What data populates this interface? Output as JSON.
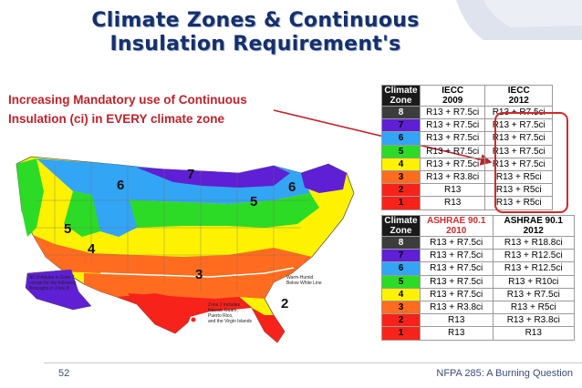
{
  "title": {
    "line1": "Climate Zones & Continuous",
    "line2": "Insulation Requirement's"
  },
  "subtitle": {
    "line1": "Increasing Mandatory use of Continuous",
    "line2": "Insulation (ci) in EVERY climate zone"
  },
  "zone_colors": [
    "#f7231b",
    "#ff6c1f",
    "#fff200",
    "#2cdb26",
    "#33c9f5",
    "#5f1fd4",
    "#0b1f6f",
    "#3d3c3c"
  ],
  "table1": {
    "headers": [
      "Climate\nZone",
      "IECC\n2009",
      "IECC\n2012"
    ],
    "rows": [
      {
        "zone": "8",
        "a": "R13 + R7.5ci",
        "b": "R13 + R7.5ci",
        "color": "#3d3c3c",
        "textcolor": "#ffffff"
      },
      {
        "zone": "7",
        "a": "R13 + R7.5ci",
        "b": "R13 + R7.5ci",
        "color": "#5f1fd4",
        "textcolor": "#000000"
      },
      {
        "zone": "6",
        "a": "R13 + R7.5ci",
        "b": "R13 + R7.5ci",
        "color": "#33a5f5",
        "textcolor": "#000000"
      },
      {
        "zone": "5",
        "a": "R13 + R7.5ci",
        "b": "R13 + R7.5ci",
        "color": "#2cdb26",
        "textcolor": "#000000"
      },
      {
        "zone": "4",
        "a": "R13 + R7.5ci",
        "b": "R13 + R7.5ci",
        "color": "#fff200",
        "textcolor": "#000000"
      },
      {
        "zone": "3",
        "a": "R13 + R3.8ci",
        "b": "R13 + R5ci",
        "color": "#ff6c1f",
        "textcolor": "#000000"
      },
      {
        "zone": "2",
        "a": "R13",
        "b": "R13 + R5ci",
        "color": "#f7231b",
        "textcolor": "#000000"
      },
      {
        "zone": "1",
        "a": "R13",
        "b": "R13 + R5ci",
        "color": "#f7231b",
        "textcolor": "#000000"
      }
    ]
  },
  "table2": {
    "headers": [
      "Climate\nZone",
      "ASHRAE 90.1\n2010",
      "ASHRAE 90.1\n2012"
    ],
    "rows": [
      {
        "zone": "8",
        "a": "R13 + R7.5ci",
        "b": "R13 + R18.8ci",
        "color": "#3d3c3c",
        "textcolor": "#ffffff"
      },
      {
        "zone": "7",
        "a": "R13 + R7.5ci",
        "b": "R13 + R12.5ci",
        "color": "#5f1fd4",
        "textcolor": "#000000"
      },
      {
        "zone": "6",
        "a": "R13 + R7.5ci",
        "b": "R13 + R12.5ci",
        "color": "#33a5f5",
        "textcolor": "#000000"
      },
      {
        "zone": "5",
        "a": "R13 + R7.5ci",
        "b": "R13 + R10ci",
        "color": "#2cdb26",
        "textcolor": "#000000"
      },
      {
        "zone": "4",
        "a": "R13 + R7.5ci",
        "b": "R13 + R7.5ci",
        "color": "#fff200",
        "textcolor": "#000000"
      },
      {
        "zone": "3",
        "a": "R13 + R3.8ci",
        "b": "R13 + R5ci",
        "color": "#ff6c1f",
        "textcolor": "#000000"
      },
      {
        "zone": "2",
        "a": "R13",
        "b": "R13 + R3.8ci",
        "color": "#f7231b",
        "textcolor": "#000000"
      },
      {
        "zone": "1",
        "a": "R13",
        "b": "R13",
        "color": "#f7231b",
        "textcolor": "#000000"
      }
    ]
  },
  "map": {
    "zone_labels": [
      "7",
      "6",
      "5",
      "4",
      "3",
      "2",
      "5",
      "6"
    ],
    "warm_humid_note": "Warm-Humid\nBelow White Line",
    "alaska_note": "All of Alaska in Zone 7\nexcept for the following\nBoroughs in Zone 8:\nBethel         Northwest Arctic\nDellingham     Southeast Fairbanks\nFairbanks N. Star  Wade Hampton\nNome          Yukon-Koyukuk\nNorth Slope",
    "hawaii_note": "Zone 1 includes\nHawaii, Guam,\nPuerto Rico,\nand the Virgin Islands"
  },
  "footer": {
    "page": "52",
    "text": "NFPA 285: A Burning Question"
  }
}
